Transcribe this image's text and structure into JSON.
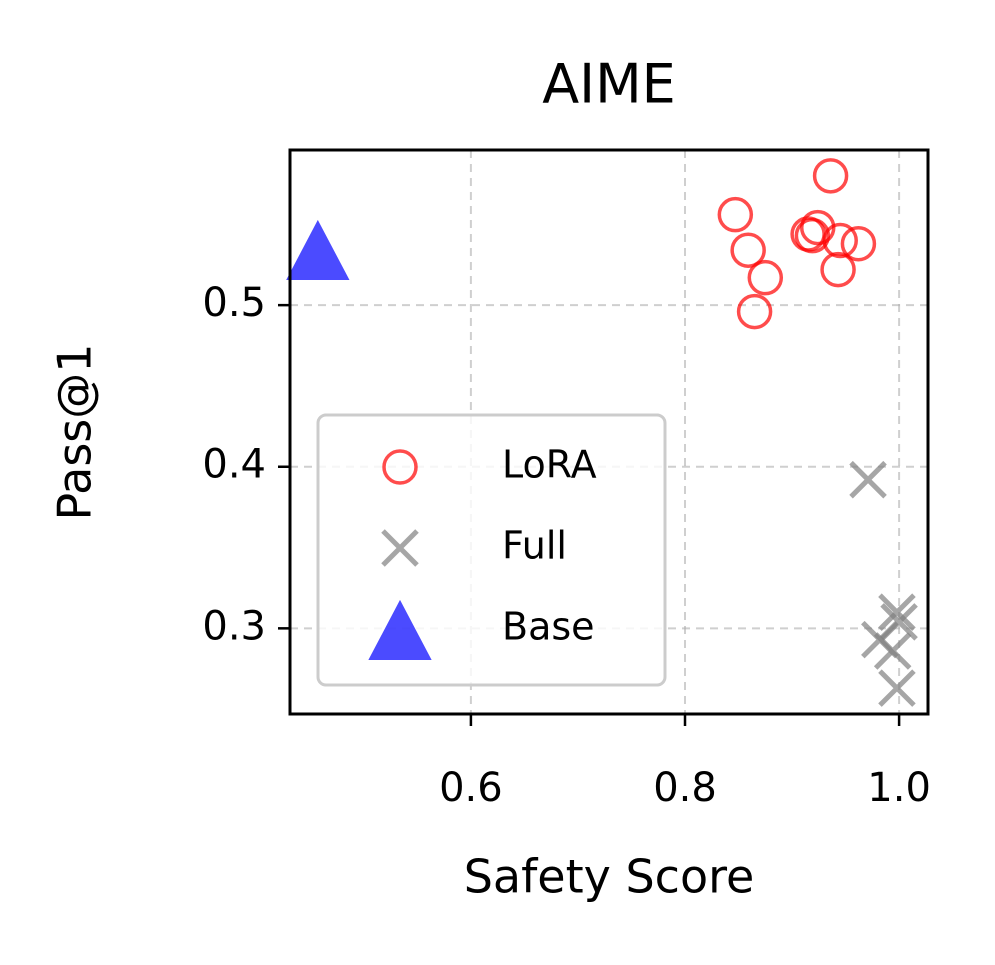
{
  "chart_data": {
    "type": "scatter",
    "title": "AIME",
    "x_label": "Safety Score",
    "y_label": "Pass@1",
    "xlim": [
      0.431,
      1.027
    ],
    "ylim": [
      0.247,
      0.596
    ],
    "xticks": [
      0.6,
      0.8,
      {
        "value": 1,
        "label": "1.0"
      }
    ],
    "yticks": [
      0.3,
      0.4,
      0.5
    ],
    "grid": true,
    "legend": "lower left",
    "series": [
      {
        "name": "LoRA",
        "color": "#ff0000",
        "marker": "circle",
        "x": [
          0.847,
          0.936,
          0.859,
          0.875,
          0.915,
          0.924,
          0.945,
          0.962,
          0.943,
          0.865,
          0.919
        ],
        "values": [
          0.556,
          0.58,
          0.534,
          0.517,
          0.544,
          0.548,
          0.54,
          0.538,
          0.522,
          0.496,
          0.543
        ]
      },
      {
        "name": "Full",
        "color": "#808080",
        "marker": "x",
        "x": [
          0.971,
          0.998,
          0.982,
          0.994,
          0.998,
          1.0
        ],
        "values": [
          0.392,
          0.31,
          0.293,
          0.286,
          0.263,
          0.304
        ]
      },
      {
        "name": "Base",
        "color": "#0000ff",
        "marker": "triangle",
        "x": [
          0.457
        ],
        "values": [
          0.531
        ]
      }
    ]
  }
}
